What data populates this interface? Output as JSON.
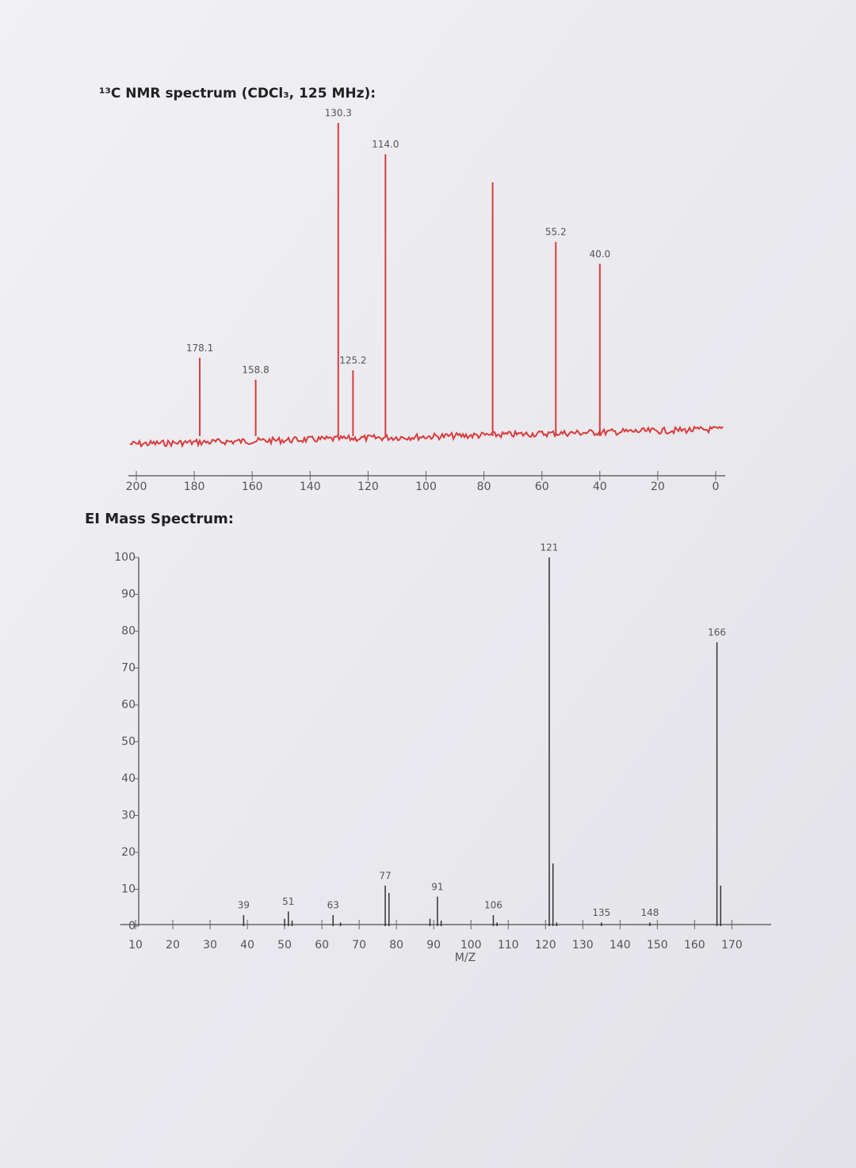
{
  "chart_data": [
    {
      "type": "spectrum",
      "title": "¹³C NMR spectrum (CDCl₃, 125 MHz):",
      "x": [
        178.1,
        158.8,
        130.3,
        125.2,
        114.0,
        77.0,
        55.2,
        40.0
      ],
      "x_labels": [
        "178.1",
        "158.8",
        "130.3",
        "125.2",
        "114.0",
        null,
        "55.2",
        "40.0"
      ],
      "values": [
        25,
        18,
        100,
        21,
        90,
        81,
        62,
        55
      ],
      "color": "#d83c3c",
      "xlim": [
        200,
        0
      ],
      "xticks": [
        200,
        180,
        160,
        140,
        120,
        100,
        80,
        60,
        40,
        20,
        0
      ]
    },
    {
      "type": "spectrum",
      "title": "EI Mass Spectrum:",
      "x_label": "M/Z",
      "x": [
        39,
        50,
        51,
        52,
        63,
        65,
        77,
        78,
        89,
        91,
        92,
        106,
        107,
        121,
        122,
        123,
        135,
        148,
        166,
        167
      ],
      "x_labels": [
        "39",
        null,
        "51",
        null,
        "63",
        null,
        "77",
        null,
        null,
        "91",
        null,
        "106",
        null,
        "121",
        null,
        null,
        "135",
        "148",
        "166",
        null
      ],
      "values": [
        3,
        2,
        4,
        1.5,
        3,
        1,
        11,
        9,
        2,
        8,
        1.5,
        3,
        1,
        100,
        17,
        1,
        1,
        1,
        77,
        11
      ],
      "color": "#333333",
      "xlim": [
        8,
        178
      ],
      "xticks": [
        10,
        20,
        30,
        40,
        50,
        60,
        70,
        80,
        90,
        100,
        110,
        120,
        130,
        140,
        150,
        160,
        170
      ],
      "ylim": [
        0,
        100
      ],
      "yticks": [
        0,
        10,
        20,
        30,
        40,
        50,
        60,
        70,
        80,
        90,
        100
      ]
    }
  ]
}
